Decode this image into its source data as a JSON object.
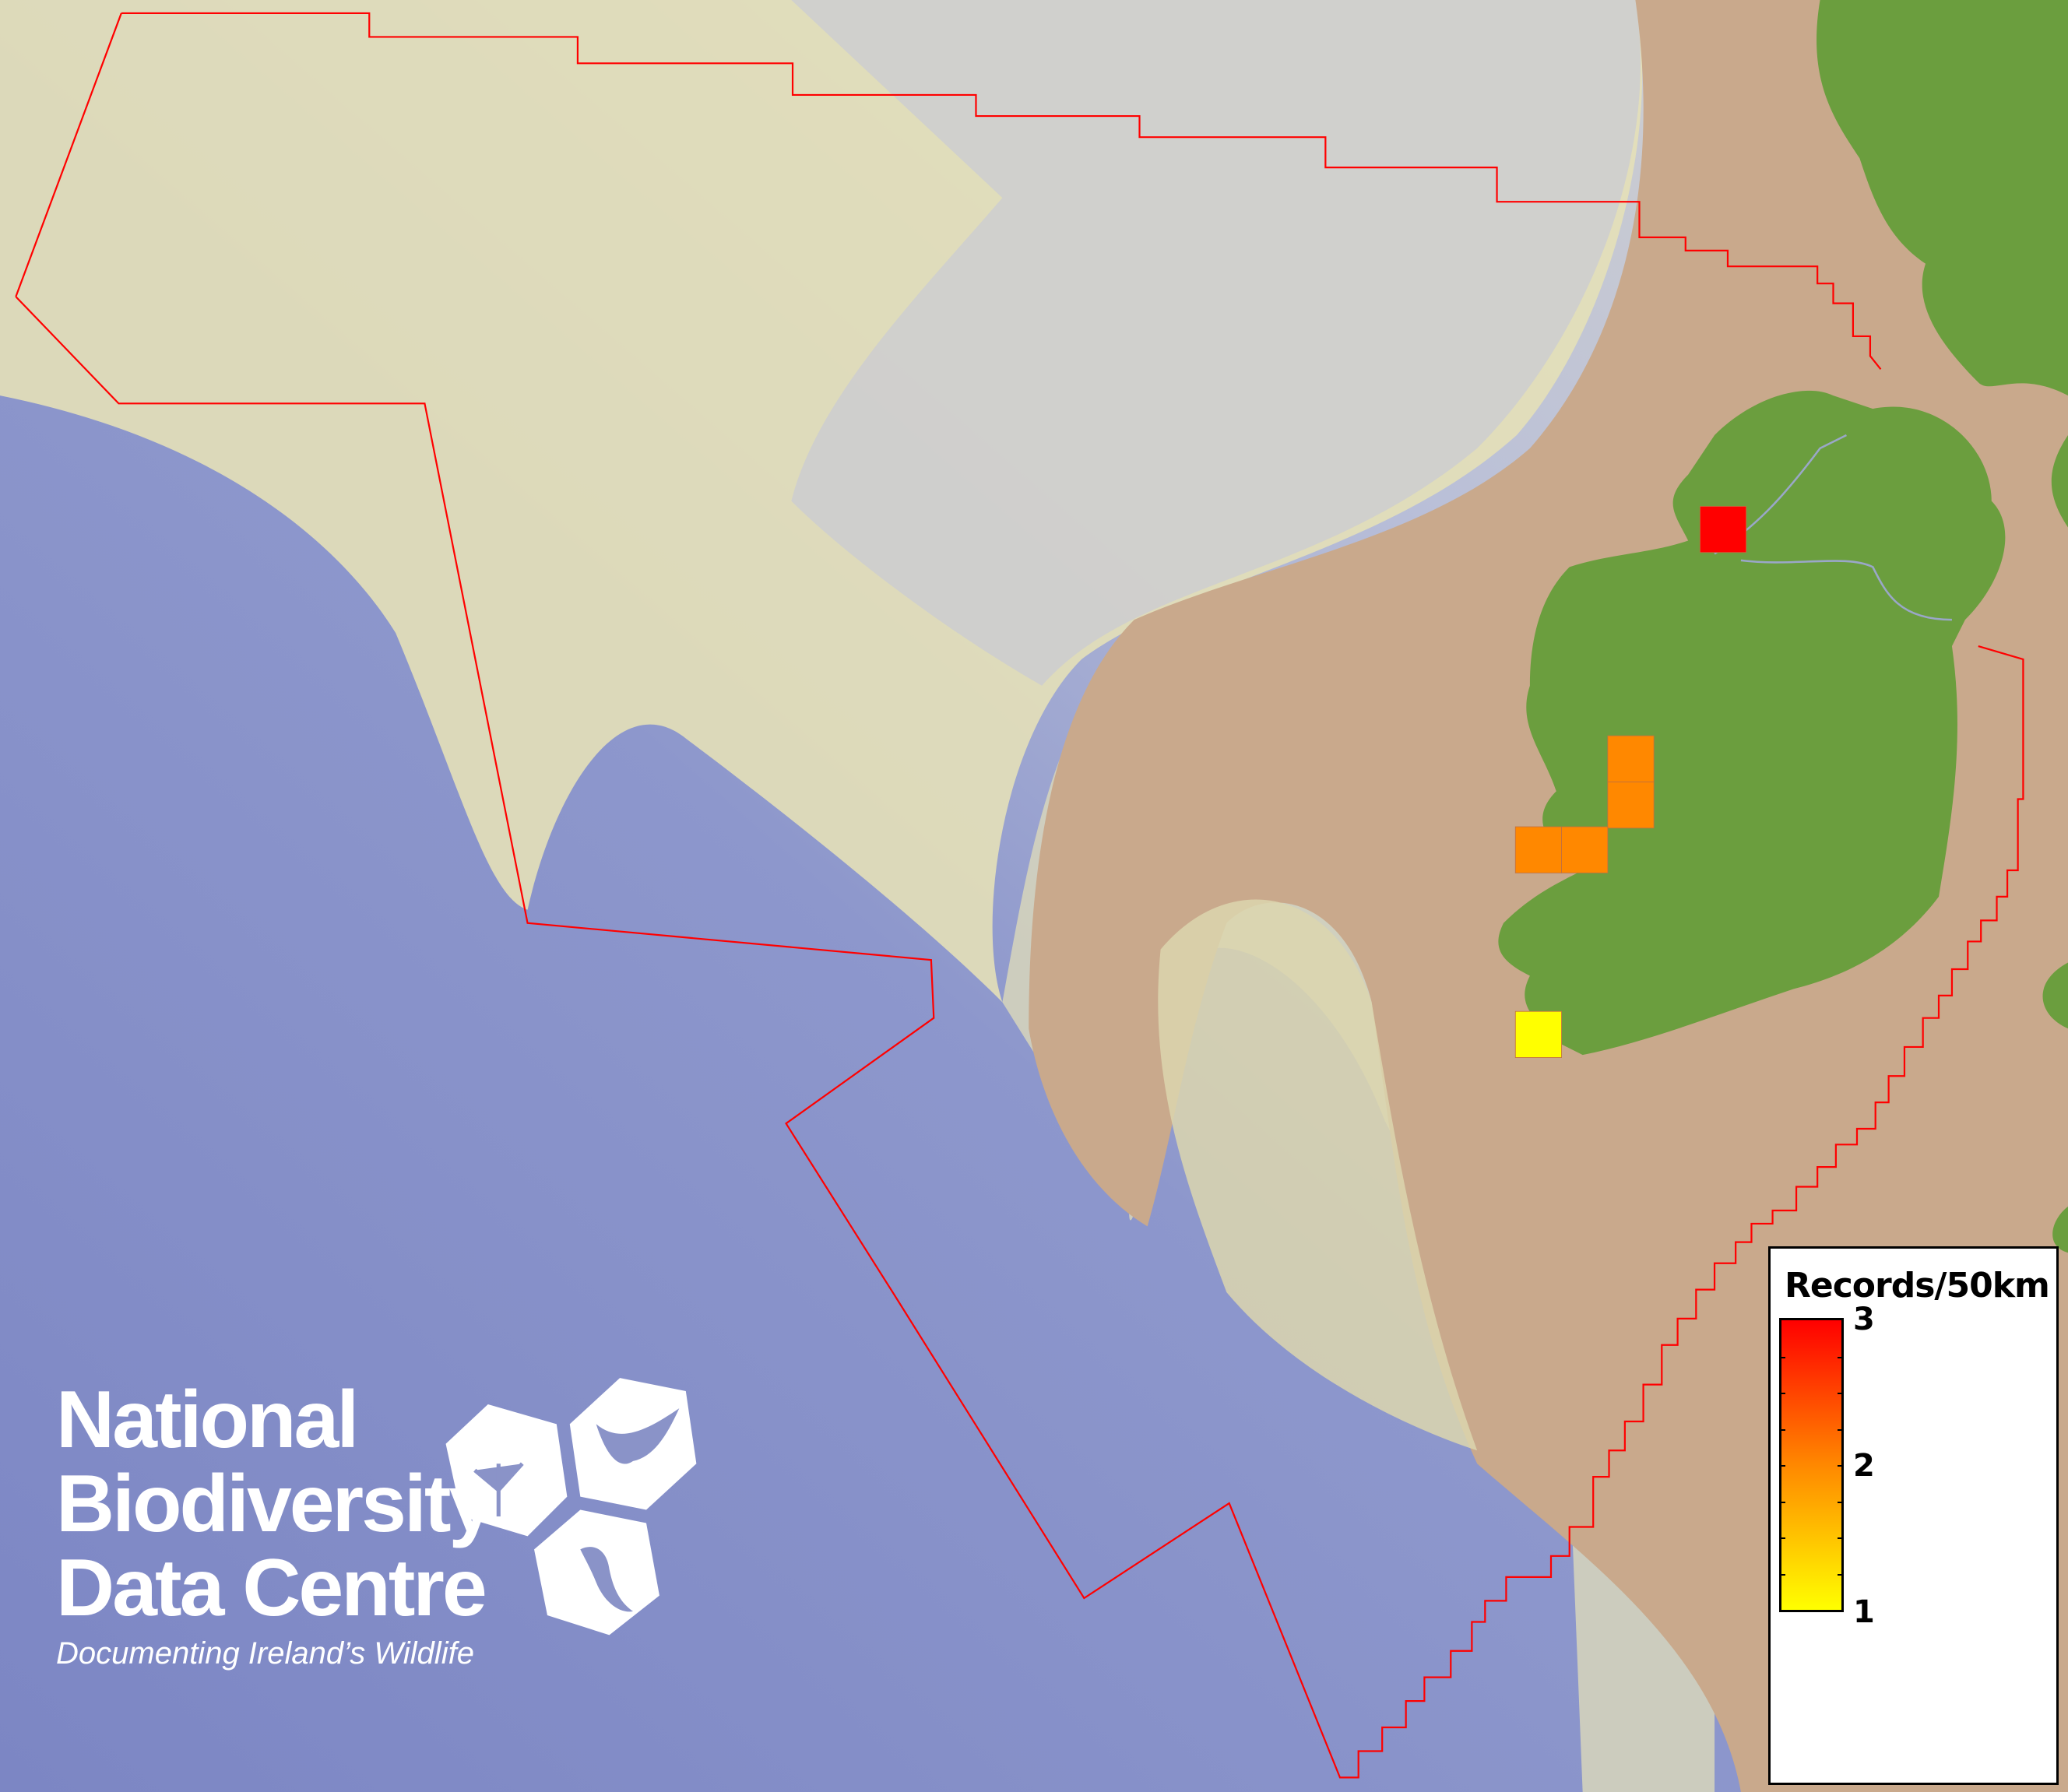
{
  "legend": {
    "title": "Records/50km",
    "max_label": "3",
    "mid_label": "2",
    "min_label": "1",
    "colors": {
      "max": "#ff0000",
      "mid": "#ff8800",
      "min": "#ffff00"
    }
  },
  "logo": {
    "line1": "National",
    "line2": "Biodiversity",
    "line3": "Data Centre",
    "tagline": "Documenting Ireland’s Wildlife",
    "icons": [
      "tree-icon",
      "butterfly-icon",
      "seahorse-icon"
    ]
  },
  "records_cells": [
    3,
    2,
    2,
    2,
    2,
    1
  ],
  "colors": {
    "deep_sea": "#7f88c6",
    "shelf": "#e8e6bf",
    "land_low": "#c9a98c",
    "land_green": "#6b9e3e",
    "boundary": "#ff0000"
  }
}
